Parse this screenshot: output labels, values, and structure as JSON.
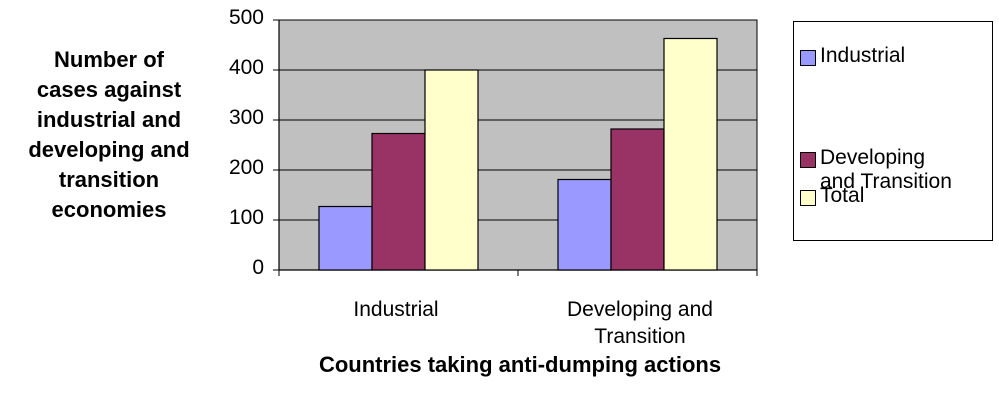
{
  "chart_data": {
    "type": "bar",
    "categories": [
      "Industrial",
      "Developing and Transition"
    ],
    "series": [
      {
        "name": "Industrial",
        "color": "#9999ff",
        "values": [
          127,
          181
        ]
      },
      {
        "name": "Developing and Transition",
        "color": "#993366",
        "values": [
          273,
          282
        ]
      },
      {
        "name": "Total",
        "color": "#ffffcc",
        "values": [
          400,
          463
        ]
      }
    ],
    "ylabel_lines": [
      "Number of",
      "cases against",
      "industrial and",
      "developing and",
      "transition",
      "economies"
    ],
    "xlabel": "Countries taking anti-dumping actions",
    "ylim": [
      0,
      500
    ],
    "yticks": [
      "0",
      "100",
      "200",
      "300",
      "400",
      "500"
    ],
    "category_lines": [
      [
        "Industrial"
      ],
      [
        "Developing and",
        "Transition"
      ]
    ],
    "legend_lines": [
      [
        "Industrial"
      ],
      [
        "Developing",
        "and Transition"
      ],
      [
        "Total"
      ]
    ],
    "plot_background": "#c0c0c0",
    "grid": true,
    "legend_position": "right"
  }
}
